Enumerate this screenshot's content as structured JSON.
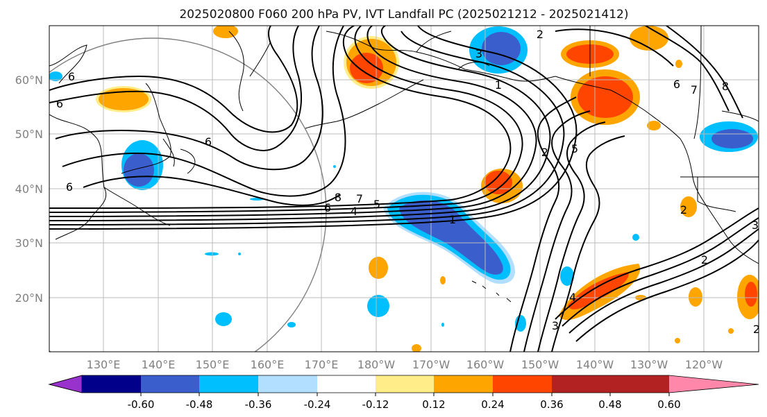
{
  "title": "2025020800 F060 200 hPa PV, IVT Landfall PC (2025021212 - 2025021412)",
  "lat_labels": [
    "60°N",
    "50°N",
    "40°N",
    "30°N",
    "20°N"
  ],
  "lon_labels": [
    "130°E",
    "140°E",
    "150°E",
    "160°E",
    "170°E",
    "180°W",
    "170°W",
    "160°W",
    "150°W",
    "140°W",
    "130°W",
    "120°W"
  ],
  "colorbar": {
    "colors": [
      "#9932cc",
      "#00008b",
      "#3a5fcd",
      "#00bfff",
      "#b2dfff",
      "#ffffff",
      "#ffed8a",
      "#ffa500",
      "#ff4500",
      "#b22222",
      "#ff88aa"
    ],
    "tick_labels": [
      "-0.60",
      "-0.48",
      "-0.36",
      "-0.24",
      "-0.12",
      "0.12",
      "0.24",
      "0.36",
      "0.48",
      "0.60"
    ]
  },
  "contour_labels": [
    "6",
    "6",
    "6",
    "6",
    "8",
    "7",
    "6",
    "4",
    "5",
    "1",
    "2",
    "5",
    "3",
    "2",
    "6",
    "7",
    "8",
    "2",
    "3",
    "4",
    "2",
    "1",
    "2",
    "3"
  ]
}
